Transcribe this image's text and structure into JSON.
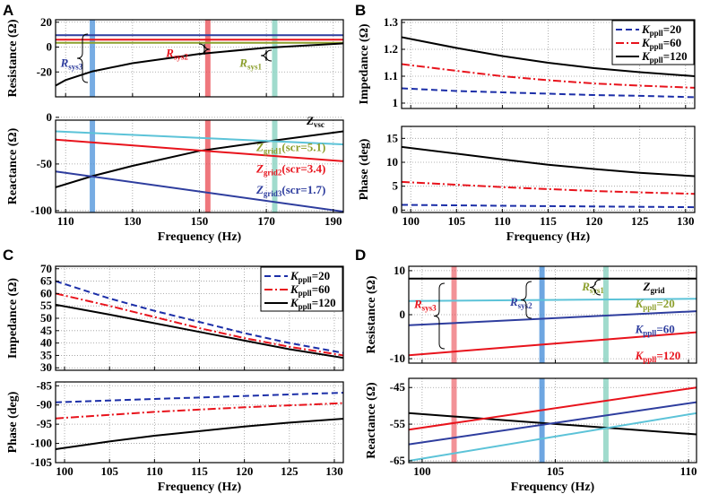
{
  "figure": {
    "panel_letters": [
      "A",
      "B",
      "C",
      "D"
    ]
  },
  "colors": {
    "black": "#000000",
    "blue": "#2e3d9e",
    "red": "#e8131c",
    "cyan": "#5cc3d8",
    "olive": "#8c9f2c",
    "band_blue": "#4a90d9",
    "band_red": "#e94a52",
    "band_teal": "#8fd5c4",
    "navy_dash": "#1c2fa8"
  },
  "chart_data": [
    {
      "id": "A-top",
      "panel": "A",
      "type": "line",
      "xlim": [
        107,
        193
      ],
      "ylim": [
        -40,
        22
      ],
      "xticks": [
        110,
        130,
        150,
        170,
        190
      ],
      "yticks": [
        -20,
        0,
        20
      ],
      "ytick_labels": [
        "-20",
        "0",
        "20"
      ],
      "show_xticks": false,
      "xlabel": "",
      "ylabel": "Resistance (Ω)",
      "bands": [
        {
          "x": 118,
          "w": 1.6,
          "color": "#4a90d9",
          "opacity": 0.75
        },
        {
          "x": 152.5,
          "w": 1.6,
          "color": "#e94a52",
          "opacity": 0.75
        },
        {
          "x": 172.5,
          "w": 1.6,
          "color": "#8fd5c4",
          "opacity": 0.85
        }
      ],
      "series": [
        {
          "name": "R_grid_blue",
          "color": "#2e3d9e",
          "width": 2,
          "x": [
            107,
            193
          ],
          "y": [
            9.5,
            9.5
          ]
        },
        {
          "name": "R_grid_red",
          "color": "#e8131c",
          "width": 2,
          "x": [
            107,
            193
          ],
          "y": [
            6,
            6
          ]
        },
        {
          "name": "R_grid_olive",
          "color": "#8c9f2c",
          "width": 2,
          "x": [
            107,
            193
          ],
          "y": [
            3.5,
            3.5
          ]
        },
        {
          "name": "R_vsc",
          "color": "#000000",
          "width": 2,
          "x": [
            107,
            110,
            118,
            130,
            150,
            170,
            193
          ],
          "y": [
            -31,
            -26.5,
            -19.5,
            -13,
            -5.5,
            -0.5,
            3
          ]
        }
      ],
      "annotations": [
        {
          "text": "R",
          "sub": "sys3",
          "color": "#2e3d9e",
          "x": 108.5,
          "y": -16
        },
        {
          "text": "R",
          "sub": "sys2",
          "color": "#e8131c",
          "x": 140,
          "y": -8
        },
        {
          "text": "R",
          "sub": "sys1",
          "color": "#8c9f2c",
          "x": 162,
          "y": -16
        }
      ]
    },
    {
      "id": "A-bottom",
      "panel": "A",
      "type": "line",
      "xlim": [
        107,
        193
      ],
      "ylim": [
        -102,
        -3
      ],
      "xticks": [
        110,
        130,
        150,
        170,
        190
      ],
      "yticks": [
        -100,
        -50,
        0
      ],
      "ytick_labels": [
        "-100",
        "-50",
        "0"
      ],
      "show_xticks": true,
      "xlabel": "Frequency (Hz)",
      "ylabel": "Reactance (Ω)",
      "bands": [
        {
          "x": 118,
          "w": 1.6,
          "color": "#4a90d9",
          "opacity": 0.75
        },
        {
          "x": 152.5,
          "w": 1.6,
          "color": "#e94a52",
          "opacity": 0.75
        },
        {
          "x": 172.5,
          "w": 1.6,
          "color": "#8fd5c4",
          "opacity": 0.85
        }
      ],
      "series": [
        {
          "name": "Z_vsc",
          "color": "#000000",
          "width": 2,
          "x": [
            107,
            118,
            130,
            150,
            170,
            193
          ],
          "y": [
            -75,
            -63,
            -52,
            -36,
            -26,
            -15
          ]
        },
        {
          "name": "Z_grid1 (scr=5.1)",
          "color": "#5cc3d8",
          "width": 2,
          "x": [
            107,
            193
          ],
          "y": [
            -15,
            -29
          ]
        },
        {
          "name": "Z_grid2 (scr=3.4)",
          "color": "#e8131c",
          "width": 2,
          "x": [
            107,
            193
          ],
          "y": [
            -24,
            -47
          ]
        },
        {
          "name": "Z_grid3 (scr=1.7)",
          "color": "#2e3d9e",
          "width": 2,
          "x": [
            107,
            193
          ],
          "y": [
            -58,
            -101
          ]
        }
      ],
      "annotations": [
        {
          "text": "Z",
          "sub": "vsc",
          "color": "#000000",
          "x": 182,
          "y": -8
        },
        {
          "text": "Z",
          "sub": "grid1",
          "suffix": "(scr=5.1)",
          "color": "#8c9f2c",
          "x": 167,
          "y": -36
        },
        {
          "text": "Z",
          "sub": "grid2",
          "suffix": "(scr=3.4)",
          "color": "#e8131c",
          "x": 167,
          "y": -59
        },
        {
          "text": "Z",
          "sub": "grid3",
          "suffix": "(scr=1.7)",
          "color": "#2e3d9e",
          "x": 167,
          "y": -82
        }
      ]
    },
    {
      "id": "B-top",
      "panel": "B",
      "type": "line",
      "xlim": [
        99,
        131
      ],
      "ylim": [
        0.98,
        1.31
      ],
      "xticks": [
        100,
        105,
        110,
        115,
        120,
        125,
        130
      ],
      "yticks": [
        1,
        1.1,
        1.2,
        1.3
      ],
      "ytick_labels": [
        "1",
        "1.1",
        "1.2",
        "1.3"
      ],
      "show_xticks": false,
      "xlabel": "",
      "ylabel": "Impedance (Ω)",
      "series": [
        {
          "name": "K_ppll=20",
          "color": "#1c2fa8",
          "dash": "7,4",
          "width": 2,
          "x": [
            99,
            105,
            110,
            115,
            120,
            125,
            131
          ],
          "y": [
            1.055,
            1.045,
            1.04,
            1.035,
            1.03,
            1.027,
            1.022
          ]
        },
        {
          "name": "K_ppll=60",
          "color": "#e8131c",
          "dash": "9,3,2,3",
          "width": 2,
          "x": [
            99,
            105,
            110,
            115,
            120,
            125,
            131
          ],
          "y": [
            1.145,
            1.12,
            1.1,
            1.085,
            1.073,
            1.065,
            1.057
          ]
        },
        {
          "name": "K_ppll=120",
          "color": "#000000",
          "width": 2,
          "x": [
            99,
            105,
            110,
            115,
            120,
            125,
            131
          ],
          "y": [
            1.245,
            1.205,
            1.175,
            1.15,
            1.13,
            1.115,
            1.1
          ]
        }
      ],
      "legend": {
        "position": "top-right",
        "prefix": "K",
        "sub": "ppll",
        "values": [
          "=20",
          "=60",
          "=120"
        ]
      }
    },
    {
      "id": "B-bottom",
      "panel": "B",
      "type": "line",
      "xlim": [
        99,
        131
      ],
      "ylim": [
        -0.5,
        17.5
      ],
      "xticks": [
        100,
        105,
        110,
        115,
        120,
        125,
        130
      ],
      "yticks": [
        0,
        5,
        10,
        15
      ],
      "ytick_labels": [
        "0",
        "5",
        "10",
        "15"
      ],
      "show_xticks": true,
      "xlabel": "Frequency (Hz)",
      "ylabel": "Phase (deg)",
      "series": [
        {
          "name": "K_ppll=20",
          "color": "#1c2fa8",
          "dash": "7,4",
          "width": 2,
          "x": [
            99,
            110,
            120,
            131
          ],
          "y": [
            1.1,
            0.9,
            0.75,
            0.6
          ]
        },
        {
          "name": "K_ppll=60",
          "color": "#e8131c",
          "dash": "9,3,2,3",
          "width": 2,
          "x": [
            99,
            105,
            110,
            115,
            120,
            125,
            131
          ],
          "y": [
            5.9,
            5.3,
            4.8,
            4.4,
            4.0,
            3.7,
            3.4
          ]
        },
        {
          "name": "K_ppll=120",
          "color": "#000000",
          "width": 2,
          "x": [
            99,
            105,
            110,
            115,
            120,
            125,
            131
          ],
          "y": [
            13.2,
            11.8,
            10.6,
            9.5,
            8.6,
            7.8,
            7.1
          ]
        }
      ]
    },
    {
      "id": "C-top",
      "panel": "C",
      "type": "line",
      "xlim": [
        99,
        131
      ],
      "ylim": [
        29,
        71
      ],
      "xticks": [
        100,
        105,
        110,
        115,
        120,
        125,
        130
      ],
      "yticks": [
        30,
        35,
        40,
        45,
        50,
        55,
        60,
        65,
        70
      ],
      "ytick_labels": [
        "30",
        "35",
        "40",
        "45",
        "50",
        "55",
        "60",
        "65",
        "70"
      ],
      "show_xticks": false,
      "xlabel": "",
      "ylabel": "Impedance (Ω)",
      "series": [
        {
          "name": "K_ppll=20",
          "color": "#1c2fa8",
          "dash": "7,4",
          "width": 2,
          "x": [
            99,
            105,
            110,
            115,
            120,
            125,
            131
          ],
          "y": [
            65,
            58,
            53,
            48.5,
            44,
            40,
            36
          ]
        },
        {
          "name": "K_ppll=60",
          "color": "#e8131c",
          "dash": "9,3,2,3",
          "width": 2,
          "x": [
            99,
            105,
            110,
            115,
            120,
            125,
            131
          ],
          "y": [
            60,
            55,
            50.5,
            46,
            42,
            38.5,
            35
          ]
        },
        {
          "name": "K_ppll=120",
          "color": "#000000",
          "width": 2,
          "x": [
            99,
            105,
            110,
            115,
            120,
            125,
            131
          ],
          "y": [
            55.5,
            51.5,
            48,
            44.5,
            41,
            37.5,
            34
          ]
        }
      ],
      "legend": {
        "position": "top-right",
        "prefix": "K",
        "sub": "ppll",
        "values": [
          "=20",
          "=60",
          "=120"
        ]
      }
    },
    {
      "id": "C-bottom",
      "panel": "C",
      "type": "line",
      "xlim": [
        99,
        131
      ],
      "ylim": [
        -105,
        -84
      ],
      "xticks": [
        100,
        105,
        110,
        115,
        120,
        125,
        130
      ],
      "yticks": [
        -105,
        -100,
        -95,
        -90,
        -85
      ],
      "ytick_labels": [
        "-105",
        "-100",
        "-95",
        "-90",
        "-85"
      ],
      "show_xticks": true,
      "xlabel": "Frequency (Hz)",
      "ylabel": "Phase (deg)",
      "series": [
        {
          "name": "K_ppll=20",
          "color": "#1c2fa8",
          "dash": "7,4",
          "width": 2,
          "x": [
            99,
            131
          ],
          "y": [
            -89.3,
            -86.8
          ]
        },
        {
          "name": "K_ppll=60",
          "color": "#e8131c",
          "dash": "9,3,2,3",
          "width": 2,
          "x": [
            99,
            110,
            120,
            131
          ],
          "y": [
            -93.5,
            -91.8,
            -90.6,
            -89.5
          ]
        },
        {
          "name": "K_ppll=120",
          "color": "#000000",
          "width": 2,
          "x": [
            99,
            105,
            110,
            115,
            120,
            125,
            131
          ],
          "y": [
            -101.5,
            -99.5,
            -98.0,
            -96.8,
            -95.6,
            -94.6,
            -93.6
          ]
        }
      ]
    },
    {
      "id": "D-top",
      "panel": "D",
      "type": "line",
      "xlim": [
        99.5,
        110.3
      ],
      "ylim": [
        -11,
        11
      ],
      "xticks": [
        100,
        105,
        110
      ],
      "yticks": [
        -10,
        0,
        10
      ],
      "ytick_labels": [
        "-10",
        "0",
        "10"
      ],
      "show_xticks": false,
      "xlabel": "",
      "ylabel": "Resistance (Ω)",
      "bands": [
        {
          "x": 101.2,
          "w": 0.2,
          "color": "#e94a52",
          "opacity": 0.6
        },
        {
          "x": 104.5,
          "w": 0.2,
          "color": "#4a90d9",
          "opacity": 0.8
        },
        {
          "x": 106.9,
          "w": 0.2,
          "color": "#8fd5c4",
          "opacity": 0.85
        }
      ],
      "series": [
        {
          "name": "Z_grid",
          "color": "#000000",
          "width": 2,
          "x": [
            99.5,
            110.3
          ],
          "y": [
            8.2,
            8.2
          ]
        },
        {
          "name": "K_ppll=20",
          "color": "#5cc3d8",
          "width": 2,
          "x": [
            99.5,
            110.3
          ],
          "y": [
            3.1,
            3.6
          ]
        },
        {
          "name": "K_ppll=60",
          "color": "#2e3d9e",
          "width": 2,
          "x": [
            99.5,
            110.3
          ],
          "y": [
            -2.4,
            0.8
          ]
        },
        {
          "name": "K_ppll=120",
          "color": "#e8131c",
          "width": 2,
          "x": [
            99.5,
            110.3
          ],
          "y": [
            -9.2,
            -4.0
          ]
        }
      ],
      "annotations": [
        {
          "text": "R",
          "sub": "sys3",
          "color": "#e8131c",
          "x": 99.7,
          "y": 1.5
        },
        {
          "text": "R",
          "sub": "sys2",
          "color": "#2e3d9e",
          "x": 103.3,
          "y": 2.0
        },
        {
          "text": "R",
          "sub": "sys1",
          "color": "#8c9f2c",
          "x": 106.0,
          "y": 5.5
        },
        {
          "text": "Z",
          "sub": "grid",
          "color": "#000000",
          "x": 108.3,
          "y": 5.5
        },
        {
          "text": "K",
          "sub": "ppll",
          "suffix": "=20",
          "color": "#8c9f2c",
          "x": 108.0,
          "y": 1.6
        },
        {
          "text": "K",
          "sub": "ppll",
          "suffix": "=60",
          "color": "#2e3d9e",
          "x": 108.0,
          "y": -4.2
        },
        {
          "text": "K",
          "sub": "ppll",
          "suffix": "=120",
          "color": "#e8131c",
          "x": 108.0,
          "y": -10.2
        }
      ]
    },
    {
      "id": "D-bottom",
      "panel": "D",
      "type": "line",
      "xlim": [
        99.5,
        110.3
      ],
      "ylim": [
        -65.5,
        -42.5
      ],
      "xticks": [
        100,
        105,
        110
      ],
      "yticks": [
        -65,
        -55,
        -45
      ],
      "ytick_labels": [
        "-65",
        "-55",
        "-45"
      ],
      "show_xticks": true,
      "xlabel": "Frequency (Hz)",
      "ylabel": "Reactance (Ω)",
      "bands": [
        {
          "x": 101.2,
          "w": 0.2,
          "color": "#e94a52",
          "opacity": 0.6
        },
        {
          "x": 104.5,
          "w": 0.2,
          "color": "#4a90d9",
          "opacity": 0.8
        },
        {
          "x": 106.9,
          "w": 0.2,
          "color": "#8fd5c4",
          "opacity": 0.85
        }
      ],
      "series": [
        {
          "name": "Z_grid",
          "color": "#000000",
          "width": 2,
          "x": [
            99.5,
            110.3
          ],
          "y": [
            -52.0,
            -57.8
          ]
        },
        {
          "name": "K_ppll=20",
          "color": "#5cc3d8",
          "width": 2,
          "x": [
            99.5,
            110.3
          ],
          "y": [
            -65.0,
            -52.0
          ]
        },
        {
          "name": "K_ppll=60",
          "color": "#2e3d9e",
          "width": 2,
          "x": [
            99.5,
            110.3
          ],
          "y": [
            -60.5,
            -49.0
          ]
        },
        {
          "name": "K_ppll=120",
          "color": "#e8131c",
          "width": 2,
          "x": [
            99.5,
            110.3
          ],
          "y": [
            -56.5,
            -45.0
          ]
        }
      ]
    }
  ]
}
